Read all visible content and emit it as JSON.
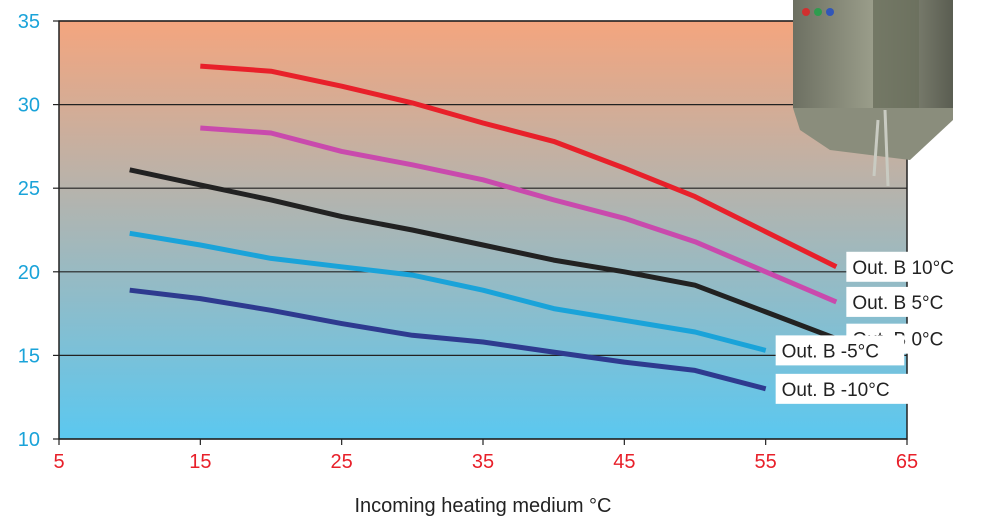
{
  "chart_data": {
    "type": "line",
    "xlabel": "Incoming heating medium °C",
    "ylabel": "",
    "xlim": [
      5,
      65
    ],
    "ylim": [
      10,
      35
    ],
    "x_ticks": [
      "5",
      "15",
      "25",
      "35",
      "45",
      "55",
      "65"
    ],
    "y_ticks": [
      "10",
      "15",
      "20",
      "25",
      "30",
      "35"
    ],
    "grid": "horizontal",
    "background": {
      "top_color": "#f4a57e",
      "bottom_color": "#5bc8f0"
    },
    "series": [
      {
        "name": "Out. B 10°C",
        "color": "#e8202a",
        "points": [
          [
            15,
            32.3
          ],
          [
            20,
            32.0
          ],
          [
            25,
            31.1
          ],
          [
            30,
            30.1
          ],
          [
            35,
            28.9
          ],
          [
            40,
            27.8
          ],
          [
            45,
            26.2
          ],
          [
            50,
            24.5
          ],
          [
            55,
            22.4
          ],
          [
            60,
            20.3
          ]
        ]
      },
      {
        "name": "Out. B 5°C",
        "color": "#c94aad",
        "points": [
          [
            15,
            28.6
          ],
          [
            20,
            28.3
          ],
          [
            25,
            27.2
          ],
          [
            30,
            26.4
          ],
          [
            35,
            25.5
          ],
          [
            40,
            24.3
          ],
          [
            45,
            23.2
          ],
          [
            50,
            21.8
          ],
          [
            55,
            20.0
          ],
          [
            60,
            18.2
          ]
        ]
      },
      {
        "name": "Out. B 0°C",
        "color": "#222222",
        "points": [
          [
            10,
            26.1
          ],
          [
            15,
            25.2
          ],
          [
            20,
            24.3
          ],
          [
            25,
            23.3
          ],
          [
            30,
            22.5
          ],
          [
            35,
            21.6
          ],
          [
            40,
            20.7
          ],
          [
            45,
            20.0
          ],
          [
            50,
            19.2
          ],
          [
            55,
            17.6
          ],
          [
            60,
            16.0
          ]
        ]
      },
      {
        "name": "Out. B -5°C",
        "color": "#1aa3d9",
        "points": [
          [
            10,
            22.3
          ],
          [
            15,
            21.6
          ],
          [
            20,
            20.8
          ],
          [
            25,
            20.3
          ],
          [
            30,
            19.8
          ],
          [
            35,
            18.9
          ],
          [
            40,
            17.8
          ],
          [
            45,
            17.1
          ],
          [
            50,
            16.4
          ],
          [
            55,
            15.3
          ]
        ]
      },
      {
        "name": "Out. B -10°C",
        "color": "#2e3a8f",
        "points": [
          [
            10,
            18.9
          ],
          [
            15,
            18.4
          ],
          [
            20,
            17.7
          ],
          [
            25,
            16.9
          ],
          [
            30,
            16.2
          ],
          [
            35,
            15.8
          ],
          [
            40,
            15.2
          ],
          [
            45,
            14.6
          ],
          [
            50,
            14.1
          ],
          [
            55,
            13.0
          ]
        ]
      }
    ]
  },
  "photo": {
    "icon": "heating-unit-cabinet-photo"
  }
}
